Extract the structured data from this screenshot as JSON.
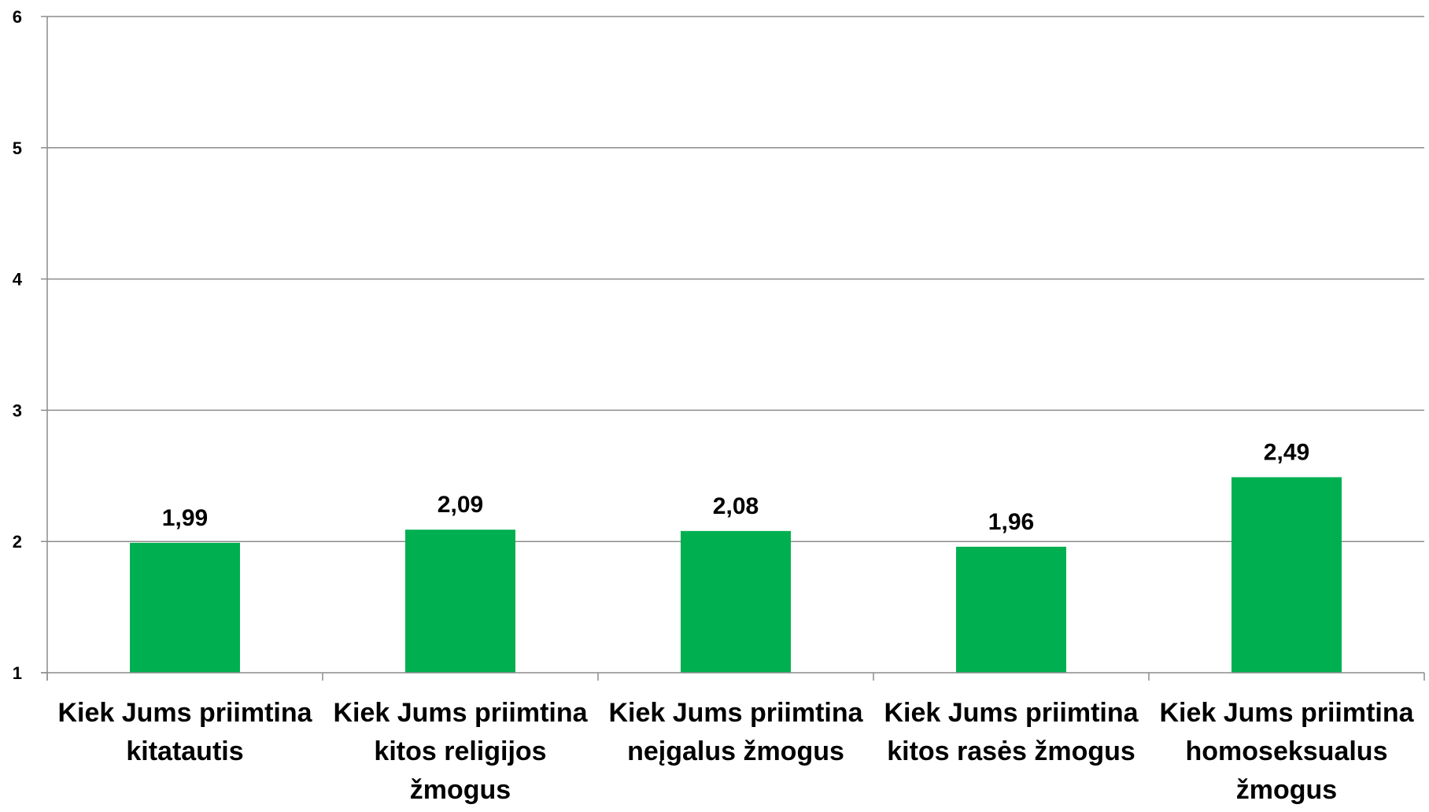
{
  "chart_data": {
    "type": "bar",
    "categories": [
      [
        "Kiek Jums priimtina",
        "kitatautis"
      ],
      [
        "Kiek Jums priimtina",
        "kitos religijos",
        "žmogus"
      ],
      [
        "Kiek Jums priimtina",
        "neįgalus žmogus"
      ],
      [
        "Kiek Jums priimtina",
        "kitos rasės žmogus"
      ],
      [
        "Kiek Jums priimtina",
        "homoseksualus",
        "žmogus"
      ]
    ],
    "values": [
      1.99,
      2.09,
      2.08,
      1.96,
      2.49
    ],
    "value_labels": [
      "1,99",
      "2,09",
      "2,08",
      "1,96",
      "2,49"
    ],
    "ylim": [
      1,
      6
    ],
    "yticks": [
      "1",
      "2",
      "3",
      "4",
      "5",
      "6"
    ],
    "grid": true,
    "legend": "none",
    "title": "",
    "xlabel": "",
    "ylabel": ""
  },
  "colors": {
    "bar": "#00b050",
    "grid": "#8c8c8c",
    "axis": "#8c8c8c",
    "text": "#000000"
  }
}
